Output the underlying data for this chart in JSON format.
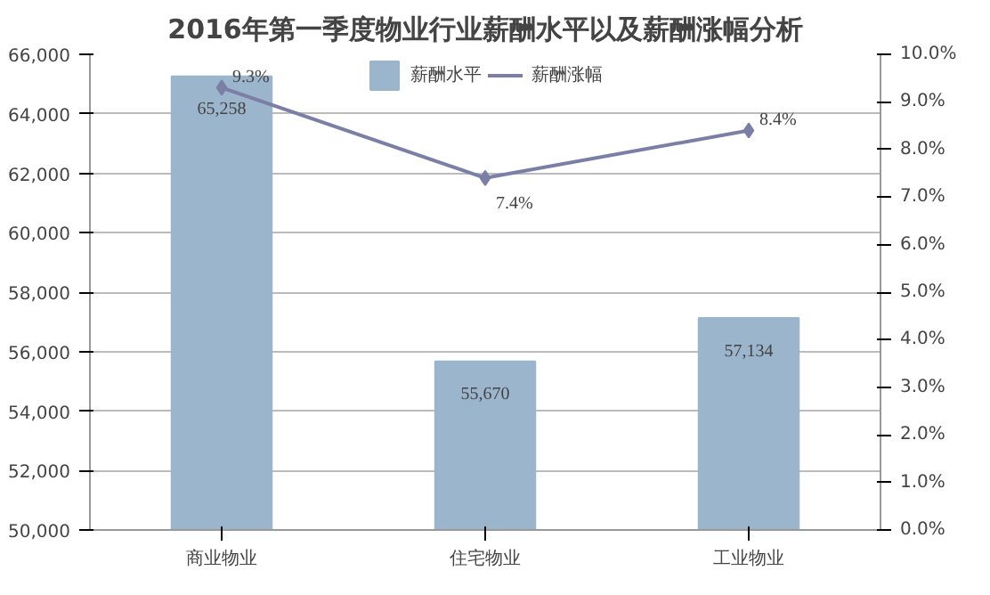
{
  "chart_data": {
    "type": "bar",
    "title": "2016年第一季度物业行业薪酬水平以及薪酬涨幅分析",
    "categories": [
      "商业物业",
      "住宅物业",
      "工业物业"
    ],
    "series": [
      {
        "name": "薪酬水平",
        "color": "#9bb5cc",
        "values": [
          65258,
          55670,
          57134
        ],
        "value_labels": [
          "65,258",
          "55,670",
          "57,134"
        ]
      },
      {
        "name": "薪酬涨幅",
        "type": "line",
        "axis": "y2",
        "color": "#7b7fa6",
        "marker": "diamond",
        "values": [
          9.3,
          7.4,
          8.4
        ],
        "value_labels": [
          "9.3%",
          "7.4%",
          "8.4%"
        ]
      }
    ],
    "ylim": [
      50000,
      66000
    ],
    "yticks": [
      {
        "value": 50000,
        "label": "50,000"
      },
      {
        "value": 52000,
        "label": "52,000"
      },
      {
        "value": 54000,
        "label": "54,000"
      },
      {
        "value": 56000,
        "label": "56,000"
      },
      {
        "value": 58000,
        "label": "58,000"
      },
      {
        "value": 60000,
        "label": "60,000"
      },
      {
        "value": 62000,
        "label": "62,000"
      },
      {
        "value": 64000,
        "label": "64,000"
      },
      {
        "value": 66000,
        "label": "66,000"
      }
    ],
    "y2lim": [
      0,
      10
    ],
    "y2ticks": [
      {
        "value": 0,
        "label": "0.0%"
      },
      {
        "value": 1,
        "label": "1.0%"
      },
      {
        "value": 2,
        "label": "2.0%"
      },
      {
        "value": 3,
        "label": "3.0%"
      },
      {
        "value": 4,
        "label": "4.0%"
      },
      {
        "value": 5,
        "label": "5.0%"
      },
      {
        "value": 6,
        "label": "6.0%"
      },
      {
        "value": 7,
        "label": "7.0%"
      },
      {
        "value": 8,
        "label": "8.0%"
      },
      {
        "value": 9,
        "label": "9.0%"
      },
      {
        "value": 10,
        "label": "10.0%"
      }
    ],
    "grid": "y",
    "legend": "top"
  }
}
